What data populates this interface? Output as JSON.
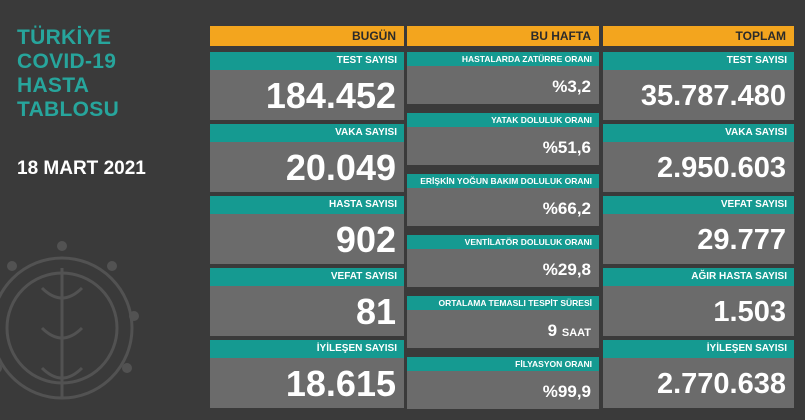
{
  "title": "TÜRKİYE\nCOVID-19\nHASTA\nTABLOSU",
  "date": "18 MART 2021",
  "columns": {
    "today": {
      "header": "BUGÜN",
      "cards": [
        {
          "label": "TEST SAYISI",
          "value": "184.452"
        },
        {
          "label": "VAKA SAYISI",
          "value": "20.049"
        },
        {
          "label": "HASTA SAYISI",
          "value": "902"
        },
        {
          "label": "VEFAT SAYISI",
          "value": "81"
        },
        {
          "label": "İYİLEŞEN SAYISI",
          "value": "18.615"
        }
      ]
    },
    "week": {
      "header": "BU HAFTA",
      "cards": [
        {
          "label": "HASTALARDA ZATÜRRE ORANI",
          "value": "%3,2"
        },
        {
          "label": "YATAK DOLULUK ORANI",
          "value": "%51,6"
        },
        {
          "label": "ERİŞKİN YOĞUN BAKIM DOLULUK ORANI",
          "value": "%66,2"
        },
        {
          "label": "VENTİLATÖR DOLULUK ORANI",
          "value": "%29,8"
        },
        {
          "label": "ORTALAMA TEMASLI TESPİT SÜRESİ",
          "value": "9",
          "unit": "SAAT"
        },
        {
          "label": "FİLYASYON ORANI",
          "value": "%99,9"
        }
      ]
    },
    "total": {
      "header": "TOPLAM",
      "cards": [
        {
          "label": "TEST SAYISI",
          "value": "35.787.480"
        },
        {
          "label": "VAKA SAYISI",
          "value": "2.950.603"
        },
        {
          "label": "VEFAT SAYISI",
          "value": "29.777"
        },
        {
          "label": "AĞIR HASTA SAYISI",
          "value": "1.503"
        },
        {
          "label": "İYİLEŞEN SAYISI",
          "value": "2.770.638"
        }
      ]
    }
  },
  "colors": {
    "accent_teal": "#159a91",
    "header_orange": "#f3a51e",
    "value_gray": "#6b6b6b",
    "background": "#3a3a3a",
    "title_teal": "#27a59c"
  }
}
